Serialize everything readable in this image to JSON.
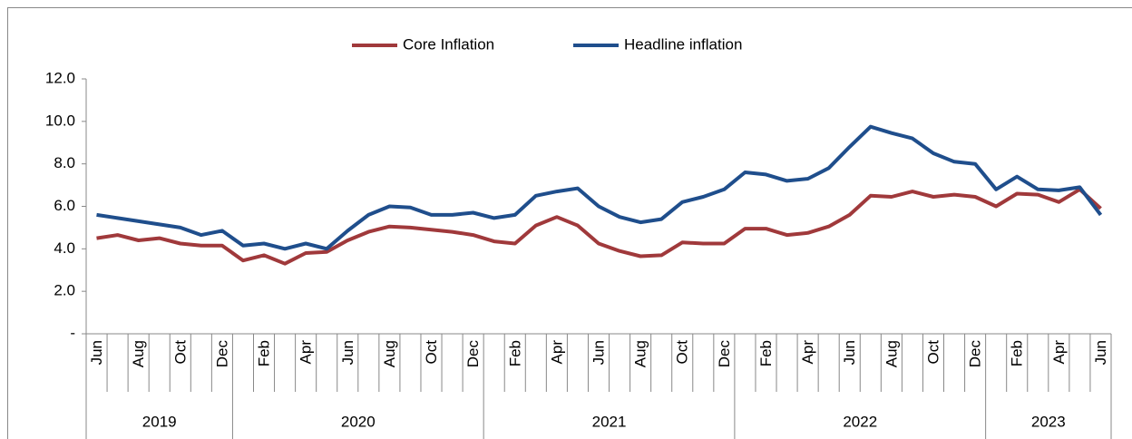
{
  "chart_data": {
    "type": "line",
    "categories": [
      "Jun",
      null,
      "Aug",
      null,
      "Oct",
      null,
      "Dec",
      null,
      "Feb",
      null,
      "Apr",
      null,
      "Jun",
      null,
      "Aug",
      null,
      "Oct",
      null,
      "Dec",
      null,
      "Feb",
      null,
      "Apr",
      null,
      "Jun",
      null,
      "Aug",
      null,
      "Oct",
      null,
      "Dec",
      null,
      "Feb",
      null,
      "Apr",
      null,
      "Jun",
      null,
      "Aug",
      null,
      "Oct",
      null,
      "Dec",
      null,
      "Feb",
      null,
      "Apr",
      null,
      "Jun"
    ],
    "years": [
      "2019",
      "2020",
      "2021",
      "2022",
      "2023"
    ],
    "series": [
      {
        "name": "Core Inflation",
        "color": "#a0393b",
        "values": [
          4.5,
          4.65,
          4.4,
          4.5,
          4.25,
          4.15,
          4.15,
          3.45,
          3.7,
          3.3,
          3.8,
          3.85,
          4.4,
          4.8,
          5.05,
          5.0,
          4.9,
          4.8,
          4.65,
          4.35,
          4.25,
          5.1,
          5.5,
          5.1,
          4.25,
          3.9,
          3.65,
          3.7,
          4.3,
          4.25,
          4.25,
          4.95,
          4.95,
          4.65,
          4.75,
          5.05,
          5.6,
          6.5,
          6.45,
          6.7,
          6.45,
          6.55,
          6.45,
          6.0,
          6.6,
          6.55,
          6.2,
          6.8,
          5.9
        ]
      },
      {
        "name": "Headline inflation",
        "color": "#1f4e8c",
        "values": [
          5.6,
          5.45,
          5.3,
          5.15,
          5.0,
          4.65,
          4.85,
          4.15,
          4.25,
          4.0,
          4.25,
          4.0,
          4.85,
          5.6,
          6.0,
          5.95,
          5.6,
          5.6,
          5.7,
          5.45,
          5.6,
          6.5,
          6.7,
          6.85,
          6.0,
          5.5,
          5.25,
          5.4,
          6.2,
          6.45,
          6.8,
          7.6,
          7.5,
          7.2,
          7.3,
          7.8,
          8.8,
          9.75,
          9.45,
          9.2,
          8.5,
          8.1,
          8.0,
          6.8,
          7.4,
          6.8,
          6.75,
          6.9,
          5.6
        ]
      }
    ],
    "ylim": [
      0,
      12
    ],
    "yticks": [
      {
        "value": 0,
        "label": "-"
      },
      {
        "value": 2,
        "label": "2.0"
      },
      {
        "value": 4,
        "label": "4.0"
      },
      {
        "value": 6,
        "label": "6.0"
      },
      {
        "value": 8,
        "label": "8.0"
      },
      {
        "value": 10,
        "label": "10.0"
      },
      {
        "value": 12,
        "label": "12.0"
      }
    ],
    "legend": "top"
  }
}
